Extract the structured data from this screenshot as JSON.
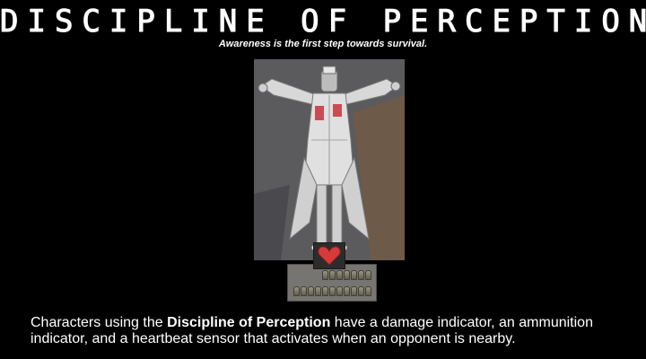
{
  "header": {
    "title": "DISCIPLINE OF PERCEPTION",
    "subtitle": "Awareness is the first step towards survival."
  },
  "figure": {
    "character_icon": "character-standing-arms-out",
    "coat_color": "#d9d9d9",
    "background_color": "#5c5c5e",
    "wall_color": "#6e5a48"
  },
  "hud": {
    "heartbeat_icon": "heart-icon",
    "heart_color": "#d63a3a",
    "ammo_icon": "bullet-icon"
  },
  "description": {
    "prefix": "Characters using the ",
    "emphasis": "Discipline of Perception",
    "suffix": " have a damage indicator, an ammunition indicator, and a heartbeat sensor that activates when an opponent is nearby."
  }
}
